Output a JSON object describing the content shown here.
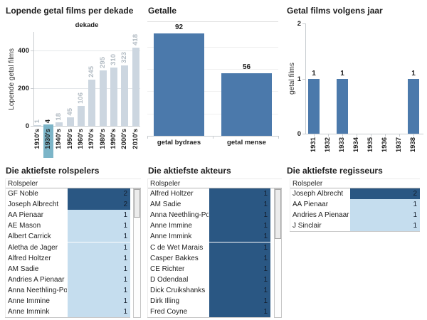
{
  "chart_data": [
    {
      "id": "lopende-getal-films-per-dekade",
      "type": "bar",
      "title": "Lopende getal films per dekade",
      "xlabel": "dekade",
      "ylabel": "Lopende getal films",
      "categories": [
        "1910's",
        "1930's",
        "1940's",
        "1950's",
        "1960's",
        "1970's",
        "1980's",
        "1990's",
        "2000's",
        "2010's"
      ],
      "values": [
        1,
        4,
        18,
        45,
        106,
        245,
        295,
        310,
        323,
        418
      ],
      "yticks": [
        0,
        200,
        400
      ],
      "ylim": [
        0,
        500
      ],
      "selected_category": "1930's",
      "value_labels": true,
      "grid": true
    },
    {
      "id": "getalle",
      "type": "bar",
      "title": "Getalle",
      "categories": [
        "getal bydraes",
        "getal mense"
      ],
      "values": [
        92,
        56
      ],
      "ylim": [
        0,
        103
      ],
      "gridlines": [
        20,
        40,
        60,
        80
      ],
      "value_labels": true,
      "grid": true
    },
    {
      "id": "getal-films-volgens-jaar",
      "type": "bar",
      "title": "Getal films volgens jaar",
      "ylabel": "getal films",
      "categories": [
        "1931",
        "1932",
        "1933",
        "1934",
        "1935",
        "1936",
        "1937",
        "1938"
      ],
      "values": [
        1,
        0,
        1,
        0,
        0,
        0,
        0,
        1
      ],
      "yticks": [
        0,
        1,
        2
      ],
      "ylim": [
        0,
        2
      ],
      "value_labels": true,
      "grid": false
    },
    {
      "id": "die-aktiefste-rolspelers",
      "type": "table",
      "title": "Die aktiefste rolspelers",
      "column_header": "Rolspeler",
      "rows": [
        {
          "name": "GF Noble",
          "value": 2
        },
        {
          "name": "Joseph Albrecht",
          "value": 2
        },
        {
          "name": "AA Pienaar",
          "value": 1
        },
        {
          "name": "AE Mason",
          "value": 1
        },
        {
          "name": "Albert Carrick",
          "value": 1
        },
        {
          "name": "Aletha de Jager",
          "value": 1
        },
        {
          "name": "Alfred Holtzer",
          "value": 1
        },
        {
          "name": "AM Sadie",
          "value": 1
        },
        {
          "name": "Andries A Pienaar",
          "value": 1
        },
        {
          "name": "Anna Neethling-Pohl",
          "value": 1
        },
        {
          "name": "Anne Immine",
          "value": 1
        },
        {
          "name": "Anne Immink",
          "value": 1
        }
      ],
      "scrollbar": {
        "visible": true,
        "thumb_height": 40
      }
    },
    {
      "id": "die-aktiefste-akteurs",
      "type": "table",
      "title": "Die aktiefste akteurs",
      "column_header": "Rolspeler",
      "rows": [
        {
          "name": "Alfred Holtzer",
          "value": 1
        },
        {
          "name": "AM Sadie",
          "value": 1
        },
        {
          "name": "Anna Neethling-Pohl",
          "value": 1
        },
        {
          "name": "Anne Immine",
          "value": 1
        },
        {
          "name": "Anne Immink",
          "value": 1
        },
        {
          "name": "C de Wet Marais",
          "value": 1
        },
        {
          "name": "Casper Bakkes",
          "value": 1
        },
        {
          "name": "CE Richter",
          "value": 1
        },
        {
          "name": "D Odendaal",
          "value": 1
        },
        {
          "name": "Dick Cruikshanks",
          "value": 1
        },
        {
          "name": "Dirk Illing",
          "value": 1
        },
        {
          "name": "Fred Coyne",
          "value": 1
        }
      ],
      "scrollbar": {
        "visible": true,
        "thumb_height": 70
      }
    },
    {
      "id": "die-aktiefste-regisseurs",
      "type": "table",
      "title": "Die aktiefste regisseurs",
      "column_header": "Rolspeler",
      "rows": [
        {
          "name": "Joseph Albrecht",
          "value": 2
        },
        {
          "name": "AA Pienaar",
          "value": 1
        },
        {
          "name": "Andries A Pienaar",
          "value": 1
        },
        {
          "name": "J Sinclair",
          "value": 1
        }
      ],
      "scrollbar": {
        "visible": false,
        "thumb_height": 0
      }
    }
  ],
  "colors": {
    "bar_blue": "#4b79ab",
    "bar_muted": "#ccd6e0",
    "muted_value_label": "#b3bcc4",
    "selection_teal": "#7cb5c8",
    "table_cell_dark": "#2a5783",
    "table_cell_light": "#c5ddee"
  }
}
